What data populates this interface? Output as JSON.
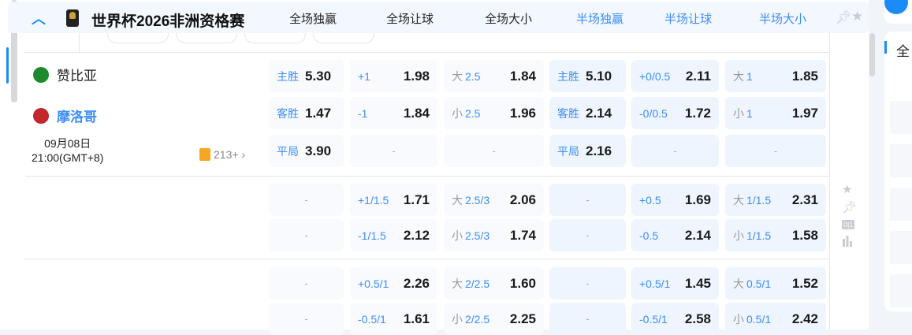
{
  "header": {
    "title": "世界杯2026非洲资格赛",
    "tabs": [
      {
        "label": "全场独赢",
        "half": false
      },
      {
        "label": "全场让球",
        "half": false
      },
      {
        "label": "全场大小",
        "half": false
      },
      {
        "label": "半场独赢",
        "half": true
      },
      {
        "label": "半场让球",
        "half": true
      },
      {
        "label": "半场大小",
        "half": true
      }
    ]
  },
  "match": {
    "home": "赞比亚",
    "away": "摩洛哥",
    "date": "09月08日",
    "time": "21:00(GMT+8)",
    "more": "213+",
    "home_flag": "#1e8a2e",
    "away_flag": "#c1272d"
  },
  "right_panel": {
    "label": "全"
  },
  "blocks": [
    [
      [
        {
          "l": "主胜",
          "v": "5.30"
        },
        {
          "l": "+1",
          "v": "1.98"
        },
        {
          "p": "大",
          "l": "2.5",
          "v": "1.84"
        },
        {
          "l": "主胜",
          "v": "5.10"
        },
        {
          "l": "+0/0.5",
          "v": "2.11"
        },
        {
          "p": "大",
          "l": "1",
          "v": "1.85"
        }
      ],
      [
        {
          "l": "客胜",
          "v": "1.47"
        },
        {
          "l": "-1",
          "v": "1.84"
        },
        {
          "p": "小",
          "l": "2.5",
          "v": "1.96"
        },
        {
          "l": "客胜",
          "v": "2.14"
        },
        {
          "l": "-0/0.5",
          "v": "1.72"
        },
        {
          "p": "小",
          "l": "1",
          "v": "1.97"
        }
      ],
      [
        {
          "l": "平局",
          "v": "3.90"
        },
        {
          "d": "-"
        },
        {
          "d": "-"
        },
        {
          "l": "平局",
          "v": "2.16"
        },
        {
          "d": "-"
        },
        {
          "d": "-"
        }
      ]
    ],
    [
      [
        {
          "d": "-"
        },
        {
          "l": "+1/1.5",
          "v": "1.71"
        },
        {
          "p": "大",
          "l": "2.5/3",
          "v": "2.06"
        },
        {
          "d": "-"
        },
        {
          "l": "+0.5",
          "v": "1.69"
        },
        {
          "p": "大",
          "l": "1/1.5",
          "v": "2.31"
        }
      ],
      [
        {
          "d": "-"
        },
        {
          "l": "-1/1.5",
          "v": "2.12"
        },
        {
          "p": "小",
          "l": "2.5/3",
          "v": "1.74"
        },
        {
          "d": "-"
        },
        {
          "l": "-0.5",
          "v": "2.14"
        },
        {
          "p": "小",
          "l": "1/1.5",
          "v": "1.58"
        }
      ]
    ],
    [
      [
        {
          "d": "-"
        },
        {
          "l": "+0.5/1",
          "v": "2.26"
        },
        {
          "p": "大",
          "l": "2/2.5",
          "v": "1.60"
        },
        {
          "d": "-"
        },
        {
          "l": "+0.5/1",
          "v": "1.45"
        },
        {
          "p": "大",
          "l": "0.5/1",
          "v": "1.52"
        }
      ],
      [
        {
          "d": "-"
        },
        {
          "l": "-0.5/1",
          "v": "1.61"
        },
        {
          "p": "小",
          "l": "2/2.5",
          "v": "2.25"
        },
        {
          "d": "-"
        },
        {
          "l": "-0.5/1",
          "v": "2.58"
        },
        {
          "p": "小",
          "l": "0.5/1",
          "v": "2.42"
        }
      ]
    ]
  ],
  "side_icons": [
    "star-icon",
    "pin-icon",
    "score-icon",
    "stats-icon"
  ],
  "side_score_label": "0|1"
}
